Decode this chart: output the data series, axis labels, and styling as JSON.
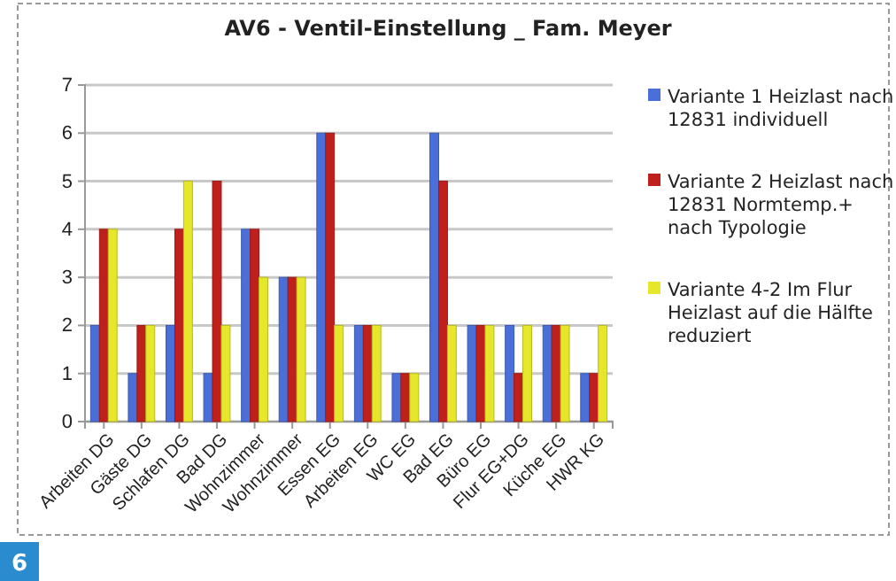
{
  "chart_data": {
    "type": "bar",
    "title": "AV6 - Ventil-Einstellung _ Fam. Meyer",
    "categories": [
      "Arbeiten DG",
      "Gäste DG",
      "Schlafen DG",
      "Bad DG",
      "Wohnzimmer",
      "Wohnzimmer",
      "Essen EG",
      "Arbeiten EG",
      "WC EG",
      "Bad EG",
      "Büro EG",
      "Flur EG+DG",
      "Küche EG",
      "HWR KG"
    ],
    "series": [
      {
        "name": "Variante 1 Heizlast nach 12831 individuell",
        "color": "#4a6fd8",
        "values": [
          2,
          1,
          2,
          1,
          4,
          3,
          6,
          2,
          1,
          6,
          2,
          2,
          2,
          1
        ]
      },
      {
        "name": "Variante 2 Heizlast nach 12831 Normtemp.+ nach Typologie",
        "color": "#c0201c",
        "values": [
          4,
          2,
          4,
          5,
          4,
          3,
          6,
          2,
          1,
          5,
          2,
          1,
          2,
          1
        ]
      },
      {
        "name": "Variante 4-2 Im Flur Heizlast auf die Hälfte reduziert",
        "color": "#e6e62a",
        "values": [
          4,
          2,
          5,
          2,
          3,
          3,
          2,
          2,
          1,
          2,
          2,
          2,
          2,
          2
        ]
      }
    ],
    "ylim": [
      0,
      7
    ],
    "yticks": [
      0,
      1,
      2,
      3,
      4,
      5,
      6,
      7
    ],
    "grid": "y",
    "legend": "right",
    "annotations": [
      "6"
    ]
  }
}
